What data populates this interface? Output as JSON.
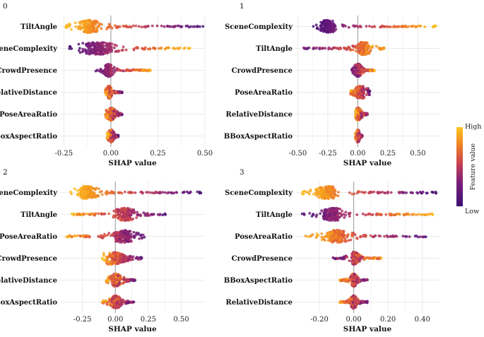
{
  "chart_data": [
    {
      "type": "scatter",
      "subtype": "shap-beeswarm",
      "title": "0",
      "xlabel": "SHAP value",
      "xlim": [
        -0.27,
        0.5
      ],
      "xticks": [
        -0.25,
        0.0,
        0.25,
        0.5
      ],
      "xtick_labels": [
        "-0.25",
        "0.00",
        "0.25",
        "0.50"
      ],
      "features": [
        {
          "name": "TiltAngle",
          "min": -0.24,
          "max": 0.49,
          "peak": -0.12,
          "core": [
            -0.19,
            -0.04
          ],
          "trend": "low-right",
          "mix": 0.1
        },
        {
          "name": "SceneComplexity",
          "min": -0.22,
          "max": 0.42,
          "peak": -0.08,
          "core": [
            -0.18,
            0.04
          ],
          "trend": "high-right",
          "mix": 0.1
        },
        {
          "name": "CrowdPresence",
          "min": -0.08,
          "max": 0.21,
          "peak": -0.01,
          "core": [
            -0.04,
            0.01
          ],
          "trend": "high-right",
          "mix": 0.25
        },
        {
          "name": "RelativeDistance",
          "min": -0.03,
          "max": 0.06,
          "peak": -0.01,
          "core": [
            -0.02,
            0.01
          ],
          "trend": "low-right",
          "mix": 0.45
        },
        {
          "name": "PoseAreaRatio",
          "min": -0.03,
          "max": 0.06,
          "peak": 0.0,
          "core": [
            -0.02,
            0.03
          ],
          "trend": "low-right",
          "mix": 0.45
        },
        {
          "name": "BBoxAspectRatio",
          "min": -0.02,
          "max": 0.04,
          "peak": 0.0,
          "core": [
            -0.01,
            0.02
          ],
          "trend": "low-right",
          "mix": 0.45
        }
      ]
    },
    {
      "type": "scatter",
      "subtype": "shap-beeswarm",
      "title": "1",
      "xlabel": "SHAP value",
      "xlim": [
        -0.52,
        0.68
      ],
      "xticks": [
        -0.5,
        -0.25,
        0.0,
        0.25,
        0.5
      ],
      "xtick_labels": [
        "-0.50",
        "-0.25",
        "0.00",
        "0.25",
        "0.50"
      ],
      "features": [
        {
          "name": "SceneComplexity",
          "min": -0.37,
          "max": 0.65,
          "peak": -0.25,
          "core": [
            -0.33,
            -0.17
          ],
          "trend": "high-right",
          "mix": 0.08
        },
        {
          "name": "TiltAngle",
          "min": -0.45,
          "max": 0.22,
          "peak": 0.05,
          "core": [
            -0.02,
            0.12
          ],
          "trend": "low-left",
          "mix": 0.25
        },
        {
          "name": "CrowdPresence",
          "min": -0.05,
          "max": 0.14,
          "peak": 0.0,
          "core": [
            -0.03,
            0.04
          ],
          "trend": "high-right",
          "mix": 0.35
        },
        {
          "name": "PoseAreaRatio",
          "min": -0.06,
          "max": 0.1,
          "peak": 0.03,
          "core": [
            -0.04,
            0.07
          ],
          "trend": "low-right",
          "mix": 0.4
        },
        {
          "name": "RelativeDistance",
          "min": -0.02,
          "max": 0.08,
          "peak": 0.0,
          "core": [
            -0.02,
            0.04
          ],
          "trend": "low-right",
          "mix": 0.45
        },
        {
          "name": "BBoxAspectRatio",
          "min": -0.02,
          "max": 0.04,
          "peak": 0.0,
          "core": [
            -0.01,
            0.02
          ],
          "trend": "low-right",
          "mix": 0.45
        }
      ]
    },
    {
      "type": "scatter",
      "subtype": "shap-beeswarm",
      "title": "2",
      "xlabel": "SHAP value",
      "xlim": [
        -0.42,
        0.68
      ],
      "xticks": [
        -0.25,
        0.0,
        0.25,
        0.5
      ],
      "xtick_labels": [
        "-0.25",
        "0.00",
        "0.25",
        "0.50"
      ],
      "features": [
        {
          "name": "SceneComplexity",
          "min": -0.34,
          "max": 0.65,
          "peak": -0.22,
          "core": [
            -0.3,
            -0.12
          ],
          "trend": "low-right",
          "mix": 0.1
        },
        {
          "name": "TiltAngle",
          "min": -0.33,
          "max": 0.38,
          "peak": 0.07,
          "core": [
            -0.02,
            0.16
          ],
          "trend": "high-left",
          "mix": 0.25
        },
        {
          "name": "PoseAreaRatio",
          "min": -0.37,
          "max": 0.22,
          "peak": 0.06,
          "core": [
            -0.03,
            0.16
          ],
          "trend": "high-left",
          "mix": 0.25
        },
        {
          "name": "CrowdPresence",
          "min": -0.1,
          "max": 0.2,
          "peak": -0.04,
          "core": [
            -0.08,
            0.12
          ],
          "trend": "high-left",
          "mix": 0.3
        },
        {
          "name": "RelativeDistance",
          "min": -0.07,
          "max": 0.15,
          "peak": 0.0,
          "core": [
            -0.04,
            0.06
          ],
          "trend": "low-right",
          "mix": 0.45
        },
        {
          "name": "BBoxAspectRatio",
          "min": -0.1,
          "max": 0.14,
          "peak": 0.0,
          "core": [
            -0.04,
            0.05
          ],
          "trend": "low-right",
          "mix": 0.45
        }
      ]
    },
    {
      "type": "scatter",
      "subtype": "shap-beeswarm",
      "title": "3",
      "xlabel": "SHAP value",
      "xlim": [
        -0.34,
        0.5
      ],
      "xticks": [
        -0.2,
        0.0,
        0.2,
        0.4
      ],
      "xtick_labels": [
        "-0.20",
        "0.00",
        "0.20",
        "0.40"
      ],
      "features": [
        {
          "name": "SceneComplexity",
          "min": -0.3,
          "max": 0.48,
          "peak": -0.15,
          "core": [
            -0.24,
            -0.08
          ],
          "trend": "low-right",
          "mix": 0.1
        },
        {
          "name": "TiltAngle",
          "min": -0.3,
          "max": 0.46,
          "peak": -0.12,
          "core": [
            -0.2,
            -0.05
          ],
          "trend": "high-right",
          "mix": 0.15
        },
        {
          "name": "PoseAreaRatio",
          "min": -0.28,
          "max": 0.42,
          "peak": -0.1,
          "core": [
            -0.18,
            -0.02
          ],
          "trend": "low-right",
          "mix": 0.2
        },
        {
          "name": "CrowdPresence",
          "min": -0.12,
          "max": 0.16,
          "peak": 0.0,
          "core": [
            -0.02,
            0.04
          ],
          "trend": "low-left",
          "mix": 0.4
        },
        {
          "name": "BBoxAspectRatio",
          "min": -0.08,
          "max": 0.08,
          "peak": 0.0,
          "core": [
            -0.02,
            0.02
          ],
          "trend": "low-right",
          "mix": 0.45
        },
        {
          "name": "RelativeDistance",
          "min": -0.08,
          "max": 0.08,
          "peak": 0.0,
          "core": [
            -0.02,
            0.02
          ],
          "trend": "low-right",
          "mix": 0.45
        }
      ]
    }
  ],
  "legend": {
    "title": "Feature value",
    "high_label": "High",
    "low_label": "Low",
    "colors": [
      "#3b0f70",
      "#6a1a7c",
      "#9c2a6d",
      "#c9424f",
      "#e8672f",
      "#f7a21c",
      "#fcc523"
    ]
  }
}
